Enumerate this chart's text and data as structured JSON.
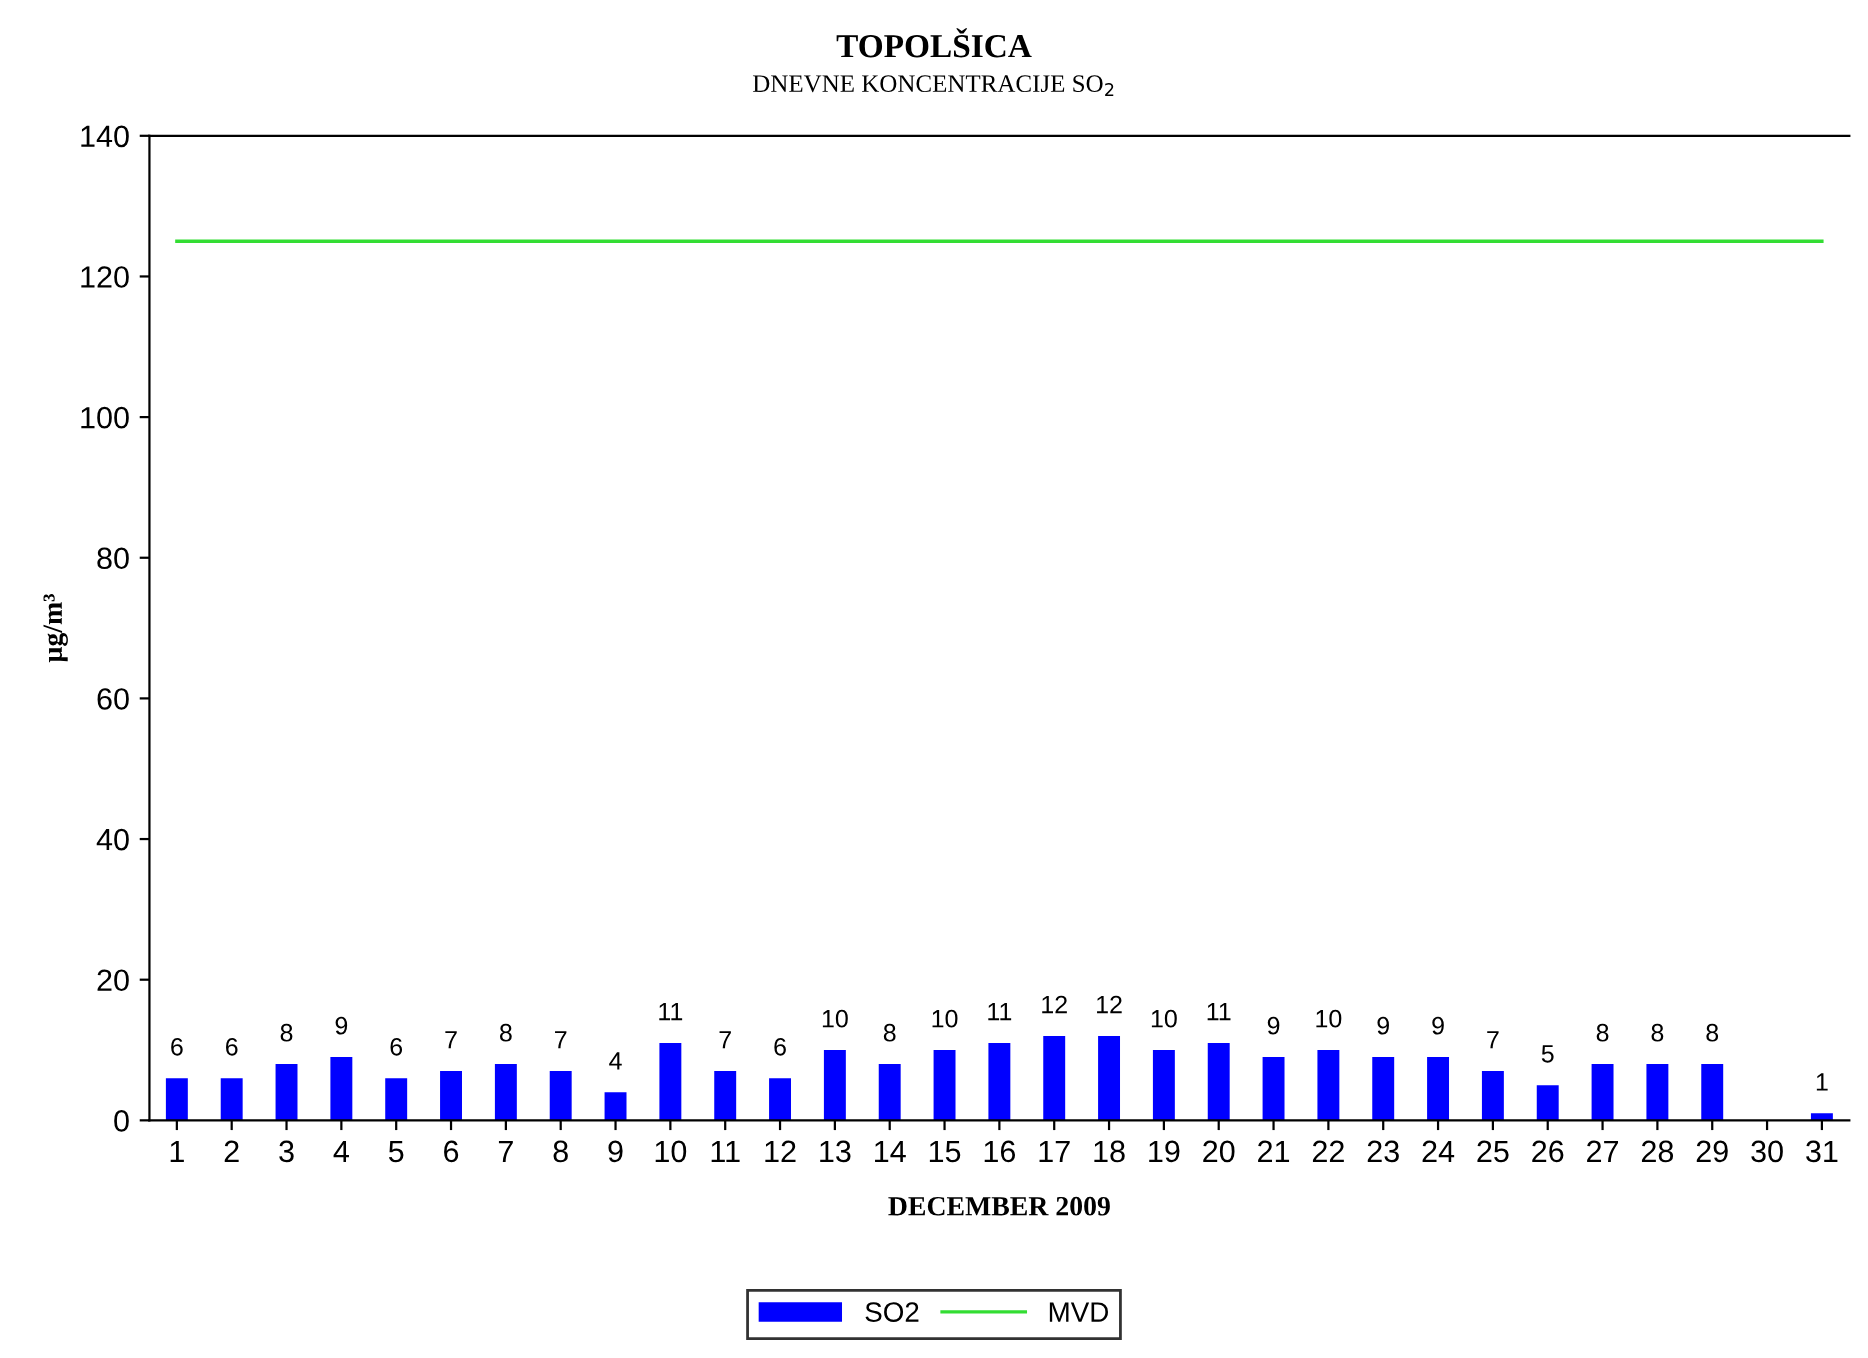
{
  "chart_data": {
    "type": "bar",
    "title": "TOPOLŠICA",
    "subtitle": "DNEVNE KONCENTRACIJE SO$_{2}$",
    "xlabel": "DECEMBER 2009",
    "ylabel": "µg/m³",
    "categories": [
      "1",
      "2",
      "3",
      "4",
      "5",
      "6",
      "7",
      "8",
      "9",
      "10",
      "11",
      "12",
      "13",
      "14",
      "15",
      "16",
      "17",
      "18",
      "19",
      "20",
      "21",
      "22",
      "23",
      "24",
      "25",
      "26",
      "27",
      "28",
      "29",
      "30",
      "31"
    ],
    "series": [
      {
        "name": "SO2",
        "color": "#0000ff",
        "values": [
          6,
          6,
          8,
          9,
          6,
          7,
          8,
          7,
          4,
          11,
          7,
          6,
          10,
          8,
          10,
          11,
          12,
          12,
          10,
          11,
          9,
          10,
          9,
          9,
          7,
          5,
          8,
          8,
          8,
          null,
          1
        ],
        "value_labels": [
          "6",
          "6",
          "8",
          "9",
          "6",
          "7",
          "8",
          "7",
          "4",
          "11",
          "7",
          "6",
          "10",
          "8",
          "10",
          "11",
          "12",
          "12",
          "10",
          "11",
          "9",
          "10",
          "9",
          "9",
          "7",
          "5",
          "8",
          "8",
          "8",
          null,
          "1"
        ]
      },
      {
        "name": "MVD",
        "type": "line",
        "color": "#33dd33",
        "values": [
          125,
          125,
          125,
          125,
          125,
          125,
          125,
          125,
          125,
          125,
          125,
          125,
          125,
          125,
          125,
          125,
          125,
          125,
          125,
          125,
          125,
          125,
          125,
          125,
          125,
          125,
          125,
          125,
          125,
          125,
          125
        ]
      }
    ],
    "ylim": [
      0,
      140
    ],
    "yticks": [
      0,
      20,
      40,
      60,
      80,
      100,
      120,
      140
    ],
    "grid": false,
    "legend": "bottom"
  }
}
